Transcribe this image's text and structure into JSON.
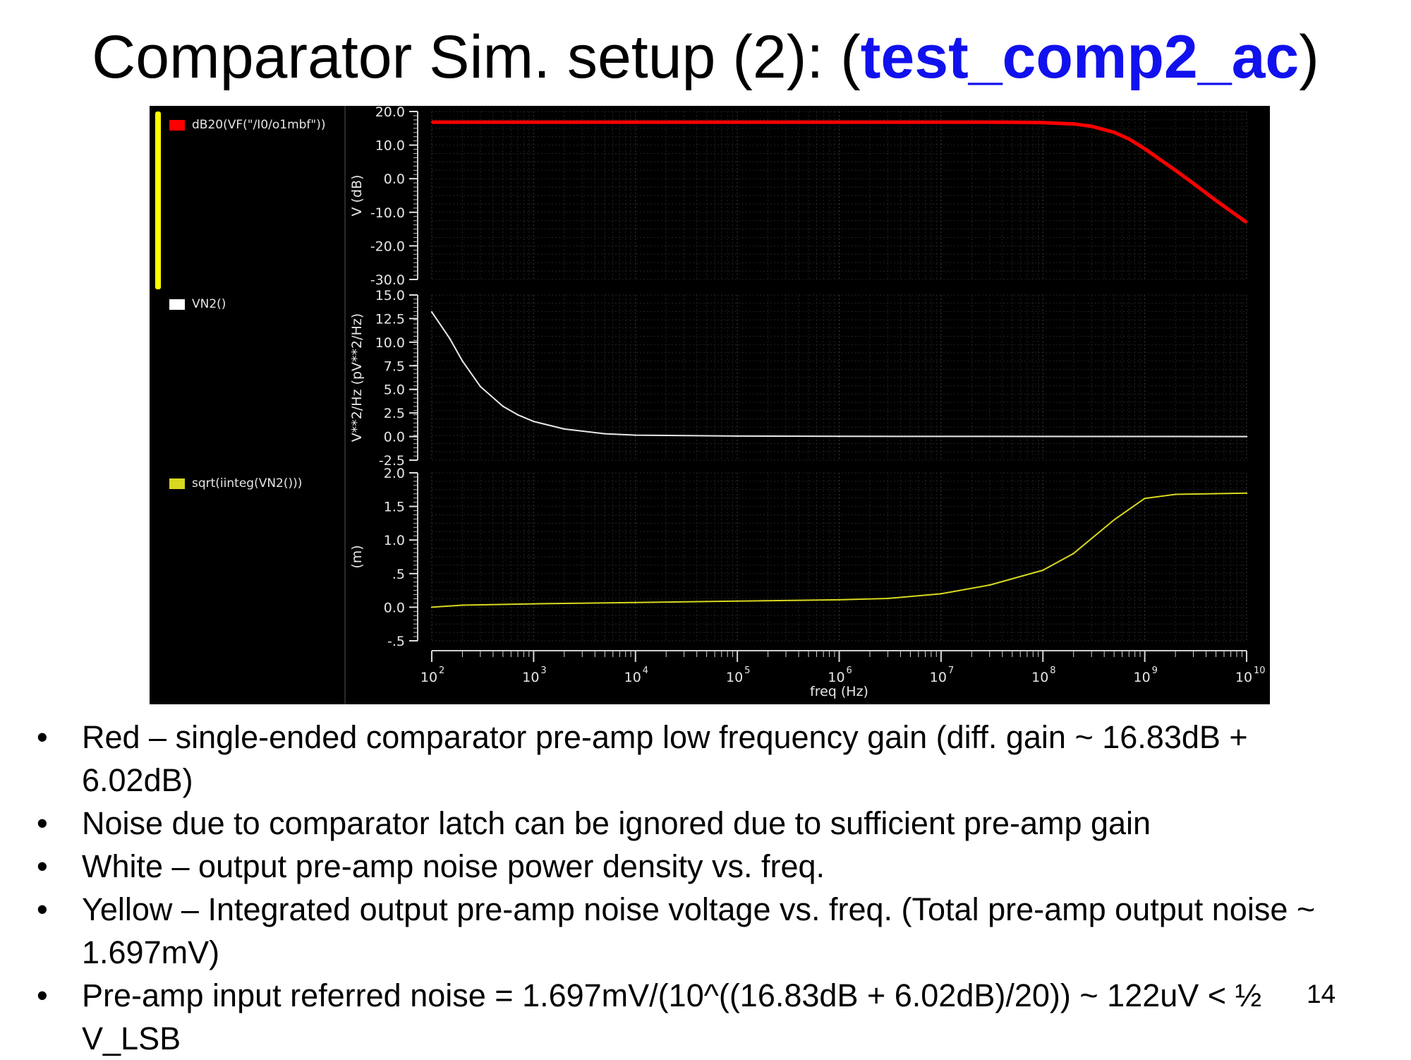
{
  "slide": {
    "title_prefix": "Comparator Sim. setup (2): (",
    "title_highlight": "test_comp2_ac",
    "title_suffix": ")",
    "page_number": "14",
    "bullets": [
      "Red – single-ended comparator pre-amp low frequency gain (diff. gain ~ 16.83dB + 6.02dB)",
      "Noise due to comparator latch can be ignored due to sufficient pre-amp gain",
      "White – output pre-amp noise power density vs. freq.",
      "Yellow – Integrated output pre-amp noise voltage vs. freq. (Total pre-amp output noise ~ 1.697mV)",
      "Pre-amp input referred noise = 1.697mV/(10^((16.83dB + 6.02dB)/20)) ~ 122uV < ½ V_LSB"
    ],
    "bullet_symbol": "•"
  },
  "chart_data": [
    {
      "type": "line",
      "legend": "dB20(VF(\"/I0/o1mbf\"))",
      "color": "#ff0000",
      "ylabel": "V (dB)",
      "ylim": [
        -30,
        20
      ],
      "yticks": [
        "20.0",
        "10.0",
        "0.0",
        "-10.0",
        "-20.0",
        "-30.0"
      ],
      "ytick_values": [
        20,
        10,
        0,
        -10,
        -20,
        -30
      ],
      "xscale": "log",
      "xlim": [
        100,
        10000000000
      ],
      "x": [
        100,
        1000000.0,
        10000000.0,
        50000000.0,
        100000000.0,
        200000000.0,
        300000000.0,
        500000000.0,
        700000000.0,
        1000000000.0,
        2000000000.0,
        3000000000.0,
        5000000000.0,
        10000000000.0
      ],
      "y": [
        16.83,
        16.83,
        16.83,
        16.8,
        16.7,
        16.3,
        15.6,
        13.8,
        11.8,
        8.9,
        2.5,
        -1.4,
        -6.5,
        -13.0
      ]
    },
    {
      "type": "line",
      "legend": "VN2()",
      "color": "#e8e8e8",
      "ylabel": "V**2/Hz (pV**2/Hz)",
      "ylim": [
        -2.5,
        15
      ],
      "yticks": [
        "15.0",
        "12.5",
        "10.0",
        "7.5",
        "5.0",
        "2.5",
        "0.0",
        "-2.5"
      ],
      "ytick_values": [
        15,
        12.5,
        10,
        7.5,
        5,
        2.5,
        0,
        -2.5
      ],
      "xscale": "log",
      "xlim": [
        100,
        10000000000
      ],
      "x": [
        100,
        150,
        200,
        300,
        500,
        700,
        1000,
        2000,
        5000,
        10000,
        100000,
        1000000.0,
        10000000000.0
      ],
      "y": [
        13.2,
        10.4,
        8.0,
        5.3,
        3.2,
        2.3,
        1.6,
        0.8,
        0.3,
        0.15,
        0.05,
        0.02,
        0.0
      ]
    },
    {
      "type": "line",
      "legend": "sqrt(iinteg(VN2()))",
      "color": "#d8d820",
      "ylabel": "(m)",
      "ylim": [
        -0.5,
        2.0
      ],
      "yticks": [
        "2.0",
        "1.5",
        "1.0",
        ".5",
        "0.0",
        "-.5"
      ],
      "ytick_values": [
        2.0,
        1.5,
        1.0,
        0.5,
        0.0,
        -0.5
      ],
      "xscale": "log",
      "xlim": [
        100,
        10000000000
      ],
      "x": [
        100,
        200,
        1000,
        10000,
        100000,
        1000000.0,
        3000000.0,
        10000000.0,
        30000000.0,
        100000000.0,
        200000000.0,
        500000000.0,
        1000000000.0,
        2000000000.0,
        5000000000.0,
        10000000000.0
      ],
      "y": [
        0.0,
        0.03,
        0.05,
        0.07,
        0.09,
        0.11,
        0.13,
        0.2,
        0.33,
        0.55,
        0.8,
        1.3,
        1.62,
        1.68,
        1.69,
        1.697
      ]
    }
  ],
  "xaxis": {
    "label": "freq (Hz)",
    "tick_base": "10",
    "tick_exponents": [
      "2",
      "3",
      "4",
      "5",
      "6",
      "7",
      "8",
      "9",
      "10"
    ]
  }
}
